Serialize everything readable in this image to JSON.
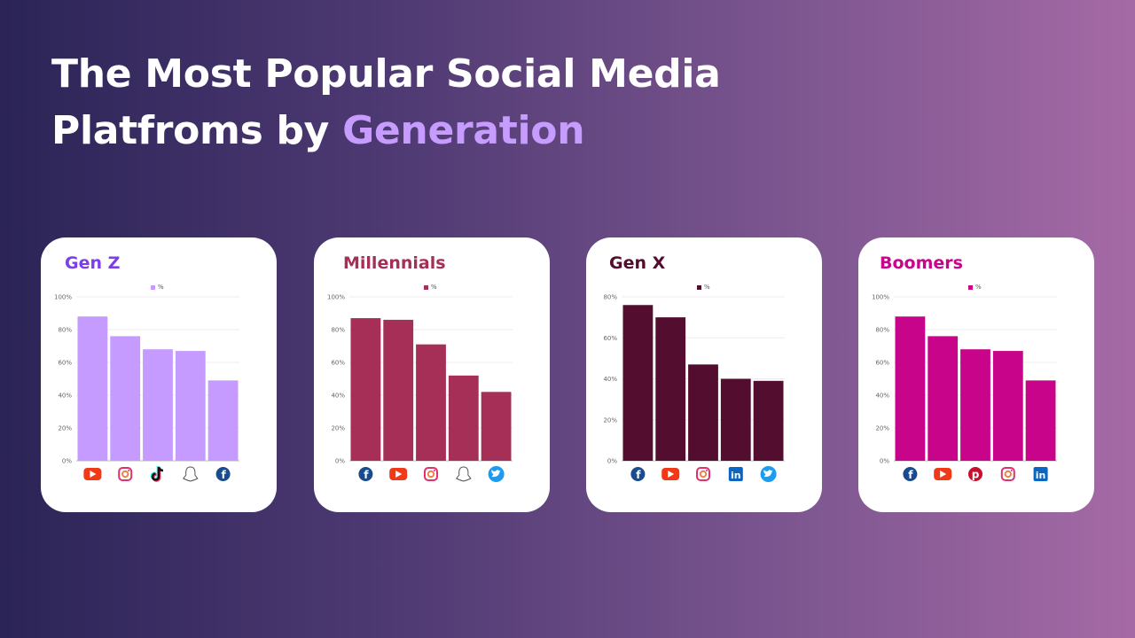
{
  "title": {
    "line1": "The Most Popular Social Media",
    "line2_prefix": "Platfroms by ",
    "line2_highlight": "Generation"
  },
  "colors": {
    "title_highlight": "#c79cff",
    "gen_z_bar": "#c59bff",
    "millennials_bar": "#a52f56",
    "gen_x_bar": "#520d2f",
    "boomers_bar": "#c8058a"
  },
  "cards": [
    {
      "title": "Gen Z",
      "title_color": "#7c3ee8",
      "legend_label": "%"
    },
    {
      "title": "Millennials",
      "title_color": "#a52f56",
      "legend_label": "%"
    },
    {
      "title": "Gen X",
      "title_color": "#520d2f",
      "legend_label": "%"
    },
    {
      "title": "Boomers",
      "title_color": "#c8058a",
      "legend_label": "%"
    }
  ],
  "chart_data": [
    {
      "type": "bar",
      "title": "Gen Z",
      "legend": [
        "%"
      ],
      "categories": [
        "YouTube",
        "Instagram",
        "TikTok",
        "Snapchat",
        "Facebook"
      ],
      "icons": [
        "youtube-icon",
        "instagram-icon",
        "tiktok-icon",
        "snapchat-icon",
        "facebook-icon"
      ],
      "values": [
        88,
        76,
        68,
        67,
        49
      ],
      "ylim": [
        0,
        100
      ],
      "yticks": [
        "0%",
        "20%",
        "40%",
        "60%",
        "80%",
        "100%"
      ],
      "color": "#c59bff"
    },
    {
      "type": "bar",
      "title": "Millennials",
      "legend": [
        "%"
      ],
      "categories": [
        "Facebook",
        "YouTube",
        "Instagram",
        "Snapchat",
        "Twitter"
      ],
      "icons": [
        "facebook-icon",
        "youtube-icon",
        "instagram-icon",
        "snapchat-icon",
        "twitter-icon"
      ],
      "values": [
        87,
        86,
        71,
        52,
        42
      ],
      "ylim": [
        0,
        100
      ],
      "yticks": [
        "0%",
        "20%",
        "40%",
        "60%",
        "80%",
        "100%"
      ],
      "color": "#a52f56"
    },
    {
      "type": "bar",
      "title": "Gen X",
      "legend": [
        "%"
      ],
      "categories": [
        "Facebook",
        "YouTube",
        "Instagram",
        "LinkedIn",
        "Twitter"
      ],
      "icons": [
        "facebook-icon",
        "youtube-icon",
        "instagram-icon",
        "linkedin-icon",
        "twitter-icon"
      ],
      "values": [
        76,
        70,
        47,
        40,
        39
      ],
      "ylim": [
        0,
        80
      ],
      "yticks": [
        "0%",
        "20%",
        "40%",
        "60%",
        "80%"
      ],
      "color": "#520d2f"
    },
    {
      "type": "bar",
      "title": "Boomers",
      "legend": [
        "%"
      ],
      "categories": [
        "Facebook",
        "YouTube",
        "Pinterest",
        "Instagram",
        "LinkedIn"
      ],
      "icons": [
        "facebook-icon",
        "youtube-icon",
        "pinterest-icon",
        "instagram-icon",
        "linkedin-icon"
      ],
      "values": [
        88,
        76,
        68,
        67,
        49
      ],
      "ylim": [
        0,
        100
      ],
      "yticks": [
        "0%",
        "20%",
        "40%",
        "60%",
        "80%",
        "100%"
      ],
      "color": "#c8058a"
    }
  ]
}
